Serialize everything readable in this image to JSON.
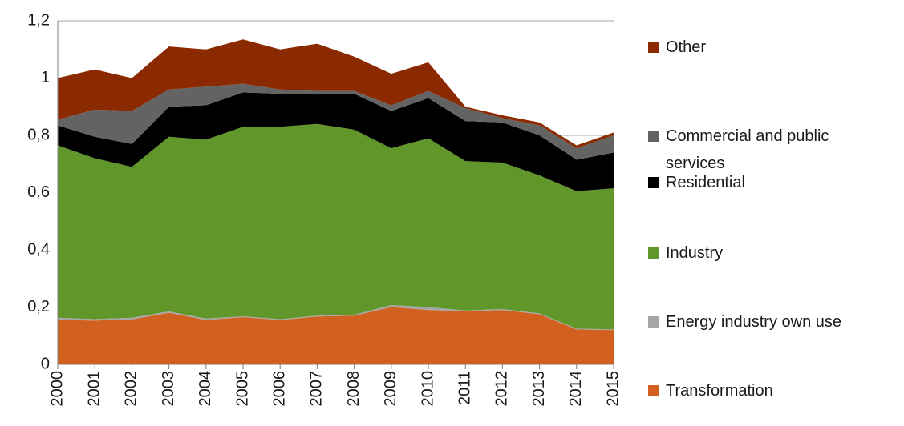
{
  "chart_data": {
    "type": "stacked_area",
    "categories": [
      "2000",
      "2001",
      "2002",
      "2003",
      "2004",
      "2005",
      "2006",
      "2007",
      "2008",
      "2009",
      "2010",
      "2011",
      "2012",
      "2013",
      "2014",
      "2015"
    ],
    "series": [
      {
        "name": "Transformation",
        "color": "#d2601f",
        "values": [
          0.155,
          0.153,
          0.157,
          0.18,
          0.155,
          0.165,
          0.155,
          0.167,
          0.17,
          0.2,
          0.19,
          0.185,
          0.19,
          0.175,
          0.122,
          0.12
        ]
      },
      {
        "name": "Energy industry own use",
        "color": "#a6a6a6",
        "values": [
          0.008,
          0.005,
          0.006,
          0.005,
          0.005,
          0.003,
          0.003,
          0.003,
          0.003,
          0.007,
          0.01,
          0.003,
          0.003,
          0.003,
          0.003,
          0.002
        ]
      },
      {
        "name": "Industry",
        "color": "#61962b",
        "values": [
          0.602,
          0.562,
          0.527,
          0.61,
          0.625,
          0.662,
          0.672,
          0.67,
          0.647,
          0.548,
          0.59,
          0.522,
          0.512,
          0.482,
          0.48,
          0.493
        ]
      },
      {
        "name": "Residential",
        "color": "#000000",
        "values": [
          0.07,
          0.075,
          0.08,
          0.105,
          0.12,
          0.12,
          0.115,
          0.105,
          0.125,
          0.13,
          0.14,
          0.14,
          0.14,
          0.14,
          0.11,
          0.125
        ]
      },
      {
        "name": "Commercial and public services",
        "color": "#636363",
        "values": [
          0.02,
          0.095,
          0.115,
          0.06,
          0.065,
          0.03,
          0.015,
          0.01,
          0.01,
          0.02,
          0.025,
          0.045,
          0.015,
          0.035,
          0.04,
          0.06
        ]
      },
      {
        "name": "Other",
        "color": "#8b2a00",
        "values": [
          0.145,
          0.14,
          0.115,
          0.15,
          0.13,
          0.155,
          0.14,
          0.165,
          0.12,
          0.11,
          0.1,
          0.005,
          0.01,
          0.01,
          0.01,
          0.01
        ]
      }
    ],
    "ylim": [
      0,
      1.2
    ],
    "yticks": [
      0,
      {
        "value": 0.2,
        "label": "0,2"
      },
      {
        "value": 0.4,
        "label": "0,4"
      },
      {
        "value": 0.6,
        "label": "0,6"
      },
      {
        "value": 0.8,
        "label": "0,8"
      },
      1,
      {
        "value": 1.2,
        "label": "1,2"
      }
    ],
    "grid": true,
    "legend": "right"
  }
}
